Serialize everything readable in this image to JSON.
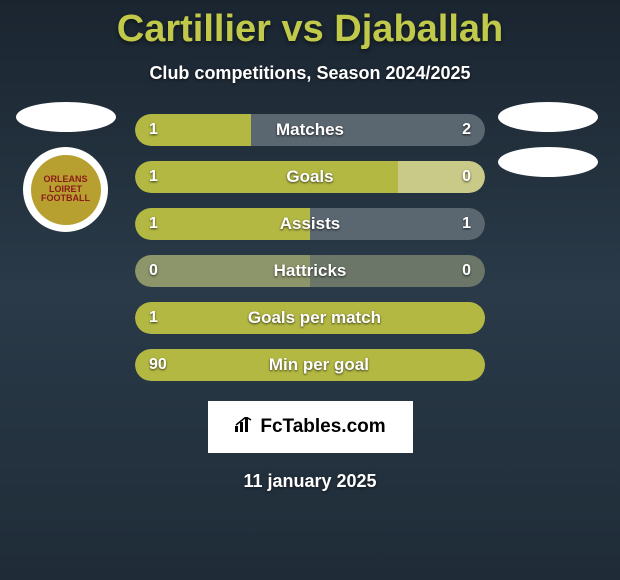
{
  "title": "Cartillier vs Djaballah",
  "subtitle": "Club competitions, Season 2024/2025",
  "date": "11 january 2025",
  "logo": {
    "text": "FcTables.com",
    "icon": "chart-icon"
  },
  "club_badge": {
    "line1": "ORLEANS",
    "line2": "LOIRET",
    "line3": "FOOTBALL"
  },
  "colors": {
    "left_bar": "#b3b843",
    "right_bar": "#5a6670",
    "left_bar_alt": "#b3b843",
    "neutral_bar": "#9aa27a",
    "title": "#c0c94a",
    "text": "#ffffff",
    "bg_top": "#1a2530",
    "bg_mid": "#2a3a48"
  },
  "stats": [
    {
      "label": "Matches",
      "left_value": "1",
      "right_value": "2",
      "left_pct": 33,
      "left_color": "#b3b843",
      "right_color": "#5a6670"
    },
    {
      "label": "Goals",
      "left_value": "1",
      "right_value": "0",
      "left_pct": 75,
      "left_color": "#b3b843",
      "right_color": "#c9c988"
    },
    {
      "label": "Assists",
      "left_value": "1",
      "right_value": "1",
      "left_pct": 50,
      "left_color": "#b3b843",
      "right_color": "#5a6670"
    },
    {
      "label": "Hattricks",
      "left_value": "0",
      "right_value": "0",
      "left_pct": 50,
      "left_color": "#8d956a",
      "right_color": "#6b7668"
    },
    {
      "label": "Goals per match",
      "left_value": "1",
      "right_value": "",
      "left_pct": 100,
      "left_color": "#b3b843",
      "right_color": "#5a6670"
    },
    {
      "label": "Min per goal",
      "left_value": "90",
      "right_value": "",
      "left_pct": 100,
      "left_color": "#b3b843",
      "right_color": "#5a6670"
    }
  ]
}
